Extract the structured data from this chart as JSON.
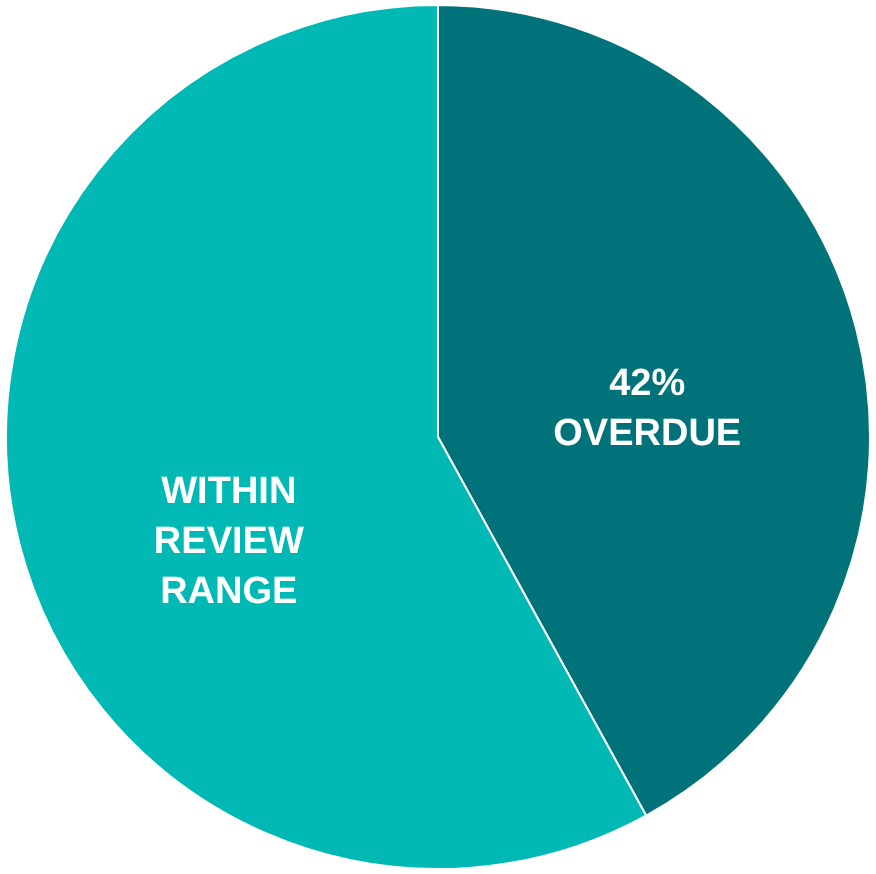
{
  "chart_data": {
    "type": "pie",
    "categories": [
      "OVERDUE",
      "WITHIN REVIEW RANGE"
    ],
    "values": [
      42,
      58
    ],
    "value_labels": [
      "42%",
      null
    ],
    "colors": [
      "#00727a",
      "#00b9b5"
    ]
  }
}
